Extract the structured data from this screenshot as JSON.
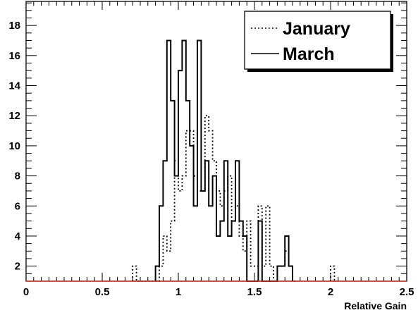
{
  "chart_data": {
    "type": "histogram-step",
    "xlabel": "Relative Gain",
    "ylabel": "",
    "xlim": [
      0,
      2.5
    ],
    "ylim": [
      1,
      19.6
    ],
    "x_ticks": [
      "0",
      "0.5",
      "1",
      "1.5",
      "2",
      "2.5"
    ],
    "y_ticks": [
      "2",
      "4",
      "6",
      "8",
      "10",
      "12",
      "14",
      "16",
      "18"
    ],
    "legend_position": "top-right",
    "bin_width": 0.025,
    "series": [
      {
        "name": "January",
        "style": "dotted",
        "bins": [
          [
            0.7,
            2
          ],
          [
            0.725,
            1
          ],
          [
            0.75,
            1
          ],
          [
            0.775,
            1
          ],
          [
            0.8,
            1
          ],
          [
            0.825,
            1
          ],
          [
            0.85,
            1
          ],
          [
            0.875,
            2
          ],
          [
            0.9,
            4
          ],
          [
            0.925,
            3
          ],
          [
            0.95,
            5
          ],
          [
            0.975,
            9
          ],
          [
            1.0,
            7
          ],
          [
            1.025,
            8
          ],
          [
            1.05,
            11
          ],
          [
            1.075,
            11
          ],
          [
            1.1,
            8
          ],
          [
            1.125,
            7
          ],
          [
            1.15,
            7
          ],
          [
            1.175,
            12
          ],
          [
            1.2,
            11
          ],
          [
            1.225,
            9
          ],
          [
            1.25,
            7
          ],
          [
            1.275,
            6
          ],
          [
            1.3,
            7
          ],
          [
            1.325,
            8
          ],
          [
            1.35,
            5
          ],
          [
            1.375,
            6
          ],
          [
            1.4,
            4
          ],
          [
            1.425,
            3
          ],
          [
            1.45,
            5
          ],
          [
            1.475,
            2
          ],
          [
            1.5,
            2
          ],
          [
            1.525,
            6
          ],
          [
            1.55,
            2
          ],
          [
            1.575,
            6
          ],
          [
            1.6,
            2
          ],
          [
            1.625,
            1
          ],
          [
            1.65,
            2
          ],
          [
            1.675,
            2
          ],
          [
            1.7,
            3
          ],
          [
            1.725,
            2
          ],
          [
            1.75,
            1
          ],
          [
            2.0,
            2
          ]
        ]
      },
      {
        "name": "March",
        "style": "solid",
        "bins": [
          [
            0.85,
            2
          ],
          [
            0.875,
            6
          ],
          [
            0.9,
            9
          ],
          [
            0.925,
            17
          ],
          [
            0.95,
            13
          ],
          [
            0.975,
            8
          ],
          [
            1.0,
            15
          ],
          [
            1.025,
            17
          ],
          [
            1.05,
            13
          ],
          [
            1.075,
            10
          ],
          [
            1.1,
            6
          ],
          [
            1.125,
            17
          ],
          [
            1.15,
            7
          ],
          [
            1.175,
            9
          ],
          [
            1.2,
            6
          ],
          [
            1.225,
            8
          ],
          [
            1.25,
            4
          ],
          [
            1.275,
            5
          ],
          [
            1.3,
            9
          ],
          [
            1.325,
            4
          ],
          [
            1.35,
            5
          ],
          [
            1.375,
            9
          ],
          [
            1.4,
            5
          ],
          [
            1.425,
            4
          ],
          [
            1.45,
            1
          ],
          [
            1.475,
            1
          ],
          [
            1.5,
            1
          ],
          [
            1.525,
            5
          ],
          [
            1.55,
            1
          ],
          [
            1.575,
            1
          ],
          [
            1.6,
            1
          ],
          [
            1.625,
            1
          ],
          [
            1.65,
            2
          ],
          [
            1.675,
            2
          ],
          [
            1.7,
            4
          ],
          [
            1.725,
            2
          ]
        ]
      }
    ],
    "colors": {
      "frame": "#000000",
      "axis_line": "#c0392b",
      "legend_shadow": "#000000"
    }
  }
}
